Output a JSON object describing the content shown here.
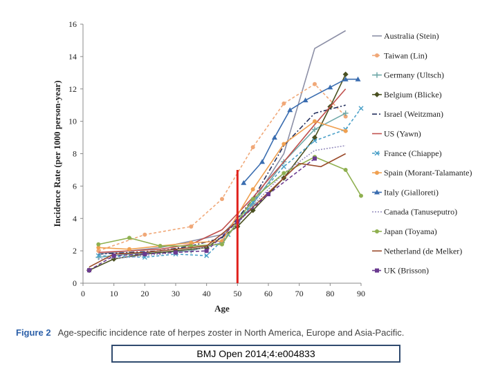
{
  "chart_data": {
    "type": "line",
    "title": "",
    "xlabel": "Age",
    "ylabel": "Incidence Rate (per 1000 person-year)",
    "xlim": [
      0,
      90
    ],
    "ylim": [
      0,
      16
    ],
    "xticks": [
      0,
      10,
      20,
      30,
      40,
      50,
      60,
      70,
      80,
      90
    ],
    "yticks": [
      0,
      2,
      4,
      6,
      8,
      10,
      12,
      14,
      16
    ],
    "grid": false,
    "legend_position": "right",
    "reference_line": {
      "x": 50,
      "y_from": 0,
      "y_to": 7,
      "color": "#e0211d"
    },
    "series": [
      {
        "name": "Australia (Stein)",
        "color": "#8c8fa6",
        "dash": "",
        "marker": "none",
        "points": [
          [
            5,
            1.8
          ],
          [
            15,
            2.0
          ],
          [
            25,
            2.2
          ],
          [
            35,
            2.6
          ],
          [
            45,
            3.0
          ],
          [
            55,
            5.0
          ],
          [
            65,
            8.0
          ],
          [
            75,
            14.5
          ],
          [
            85,
            15.6
          ]
        ]
      },
      {
        "name": "Taiwan (Lin)",
        "color": "#f0a878",
        "dash": "4,3",
        "marker": "circle",
        "points": [
          [
            5,
            2.0
          ],
          [
            20,
            3.0
          ],
          [
            35,
            3.5
          ],
          [
            45,
            5.2
          ],
          [
            55,
            8.4
          ],
          [
            65,
            11.1
          ],
          [
            75,
            12.3
          ],
          [
            85,
            10.3
          ]
        ]
      },
      {
        "name": "Germany (Ultsch)",
        "color": "#6fa8a8",
        "dash": "",
        "marker": "plus",
        "points": [
          [
            5,
            1.6
          ],
          [
            15,
            1.8
          ],
          [
            25,
            1.9
          ],
          [
            35,
            2.0
          ],
          [
            45,
            2.5
          ],
          [
            55,
            4.9
          ],
          [
            65,
            7.5
          ],
          [
            75,
            9.5
          ],
          [
            85,
            10.5
          ]
        ]
      },
      {
        "name": "Belgium (Blicke)",
        "color": "#4a5020",
        "dash": "",
        "marker": "diamond",
        "points": [
          [
            2,
            0.8
          ],
          [
            10,
            1.5
          ],
          [
            20,
            1.8
          ],
          [
            30,
            2.0
          ],
          [
            40,
            2.2
          ],
          [
            50,
            3.5
          ],
          [
            55,
            4.5
          ],
          [
            65,
            6.5
          ],
          [
            75,
            9.0
          ],
          [
            80,
            10.9
          ],
          [
            85,
            12.9
          ]
        ]
      },
      {
        "name": "Israel (Weitzman)",
        "color": "#24305e",
        "dash": "7,3,2,3",
        "marker": "none",
        "points": [
          [
            5,
            1.8
          ],
          [
            15,
            1.9
          ],
          [
            25,
            2.0
          ],
          [
            35,
            2.3
          ],
          [
            45,
            2.8
          ],
          [
            55,
            5.2
          ],
          [
            65,
            8.5
          ],
          [
            75,
            10.5
          ],
          [
            85,
            11.0
          ]
        ]
      },
      {
        "name": "US (Yawn)",
        "color": "#c0504d",
        "dash": "",
        "marker": "none",
        "points": [
          [
            5,
            1.9
          ],
          [
            15,
            2.0
          ],
          [
            25,
            2.1
          ],
          [
            35,
            2.4
          ],
          [
            45,
            3.3
          ],
          [
            55,
            5.3
          ],
          [
            65,
            7.5
          ],
          [
            75,
            9.8
          ],
          [
            85,
            12.0
          ]
        ]
      },
      {
        "name": "France (Chiappe)",
        "color": "#4aa0c8",
        "dash": "4,3",
        "marker": "cross",
        "points": [
          [
            5,
            1.7
          ],
          [
            20,
            1.6
          ],
          [
            30,
            1.8
          ],
          [
            40,
            1.7
          ],
          [
            47,
            3.0
          ],
          [
            55,
            5.0
          ],
          [
            65,
            7.2
          ],
          [
            75,
            8.8
          ],
          [
            85,
            9.5
          ],
          [
            90,
            10.8
          ]
        ]
      },
      {
        "name": "Spain (Morant-Talamante)",
        "color": "#f0a050",
        "dash": "",
        "marker": "circle",
        "points": [
          [
            5,
            2.2
          ],
          [
            15,
            2.1
          ],
          [
            25,
            2.3
          ],
          [
            35,
            2.5
          ],
          [
            45,
            2.6
          ],
          [
            55,
            5.8
          ],
          [
            65,
            8.6
          ],
          [
            75,
            10.0
          ],
          [
            85,
            9.4
          ]
        ]
      },
      {
        "name": "Italy (Gialloreti)",
        "color": "#3a6db0",
        "dash": "",
        "marker": "triangle",
        "points": [
          [
            52,
            6.2
          ],
          [
            58,
            7.5
          ],
          [
            62,
            9.0
          ],
          [
            67,
            10.7
          ],
          [
            72,
            11.3
          ],
          [
            80,
            12.1
          ],
          [
            85,
            12.6
          ],
          [
            89,
            12.6
          ]
        ]
      },
      {
        "name": "Canada (Tanuseputro)",
        "color": "#9890c0",
        "dash": "2,2",
        "marker": "none",
        "points": [
          [
            5,
            1.5
          ],
          [
            15,
            1.6
          ],
          [
            25,
            1.8
          ],
          [
            35,
            2.0
          ],
          [
            45,
            2.5
          ],
          [
            55,
            4.8
          ],
          [
            65,
            6.8
          ],
          [
            75,
            8.2
          ],
          [
            85,
            8.5
          ]
        ]
      },
      {
        "name": "Japan (Toyama)",
        "color": "#8fb050",
        "dash": "",
        "marker": "circle",
        "points": [
          [
            5,
            2.4
          ],
          [
            15,
            2.8
          ],
          [
            25,
            2.3
          ],
          [
            35,
            2.3
          ],
          [
            45,
            2.4
          ],
          [
            55,
            5.2
          ],
          [
            65,
            6.8
          ],
          [
            75,
            7.8
          ],
          [
            85,
            7.0
          ],
          [
            90,
            5.4
          ]
        ]
      },
      {
        "name": "Netherland (de Melker)",
        "color": "#9a4a2a",
        "dash": "",
        "marker": "none",
        "points": [
          [
            2,
            1.0
          ],
          [
            10,
            1.8
          ],
          [
            20,
            1.9
          ],
          [
            30,
            2.1
          ],
          [
            40,
            2.3
          ],
          [
            50,
            3.8
          ],
          [
            60,
            5.6
          ],
          [
            70,
            7.4
          ],
          [
            77,
            7.2
          ],
          [
            85,
            8.0
          ]
        ]
      },
      {
        "name": "UK (Brisson)",
        "color": "#6a3a90",
        "dash": "5,3",
        "marker": "square",
        "points": [
          [
            2,
            0.8
          ],
          [
            10,
            1.7
          ],
          [
            20,
            1.8
          ],
          [
            30,
            1.9
          ],
          [
            40,
            2.0
          ],
          [
            50,
            3.8
          ],
          [
            60,
            5.5
          ],
          [
            75,
            7.7
          ]
        ]
      }
    ]
  },
  "caption": {
    "figure_label": "Figure 2",
    "text": "Age-specific incidence rate of herpes zoster in North America, Europe and Asia-Pacific."
  },
  "citation": {
    "text": "BMJ Open 2014;4:e004833"
  }
}
